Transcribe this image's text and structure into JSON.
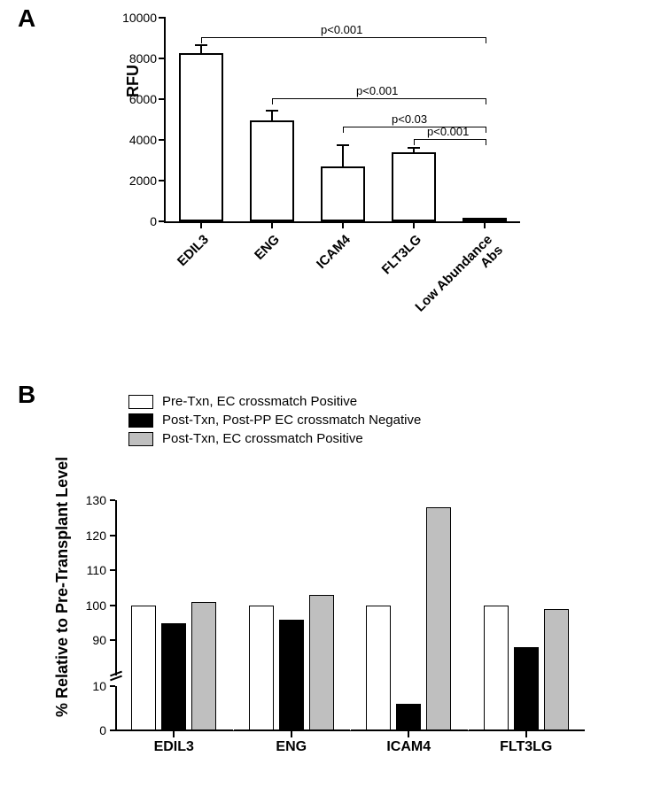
{
  "panelA": {
    "label": "A",
    "ylabel": "RFU",
    "ylim": [
      0,
      10000
    ],
    "ytick_step": 2000,
    "yticks": [
      0,
      2000,
      4000,
      6000,
      8000,
      10000
    ],
    "categories": [
      "EDIL3",
      "ENG",
      "ICAM4",
      "FLT3LG",
      "Low Abundance Abs"
    ],
    "values": [
      8250,
      4950,
      2700,
      3400,
      80
    ],
    "errors": [
      400,
      500,
      1050,
      220,
      50
    ],
    "bar_fill": "#ffffff",
    "bar_border": "#000000",
    "comparisons": [
      {
        "from": 0,
        "to": 4,
        "label": "p<0.001",
        "y": 9050
      },
      {
        "from": 1,
        "to": 4,
        "label": "p<0.001",
        "y": 6050
      },
      {
        "from": 2,
        "to": 4,
        "label": "p<0.03",
        "y": 4650
      },
      {
        "from": 3,
        "to": 4,
        "label": "p<0.001",
        "y": 4050
      }
    ]
  },
  "panelB": {
    "label": "B",
    "ylabel": "% Relative to Pre-Transplant Level",
    "categories": [
      "EDIL3",
      "ENG",
      "ICAM4",
      "FLT3LG"
    ],
    "legend": [
      {
        "label": "Pre-Txn, EC crossmatch Positive",
        "color": "#ffffff"
      },
      {
        "label": "Post-Txn, Post-PP EC crossmatch Negative",
        "color": "#000000"
      },
      {
        "label": "Post-Txn, EC crossmatch Positive",
        "color": "#bfbfbf"
      }
    ],
    "series": [
      {
        "name": "pre",
        "color": "#ffffff",
        "values": [
          100,
          100,
          100,
          100
        ]
      },
      {
        "name": "postneg",
        "color": "#000000",
        "values": [
          95,
          96,
          6,
          88
        ]
      },
      {
        "name": "postpos",
        "color": "#bfbfbf",
        "values": [
          101,
          103,
          128,
          99
        ]
      }
    ],
    "y_lower": {
      "min": 0,
      "max": 10,
      "ticks": [
        0,
        10
      ]
    },
    "y_upper": {
      "min": 80,
      "max": 130,
      "ticks": [
        90,
        100,
        110,
        120,
        130
      ]
    }
  }
}
